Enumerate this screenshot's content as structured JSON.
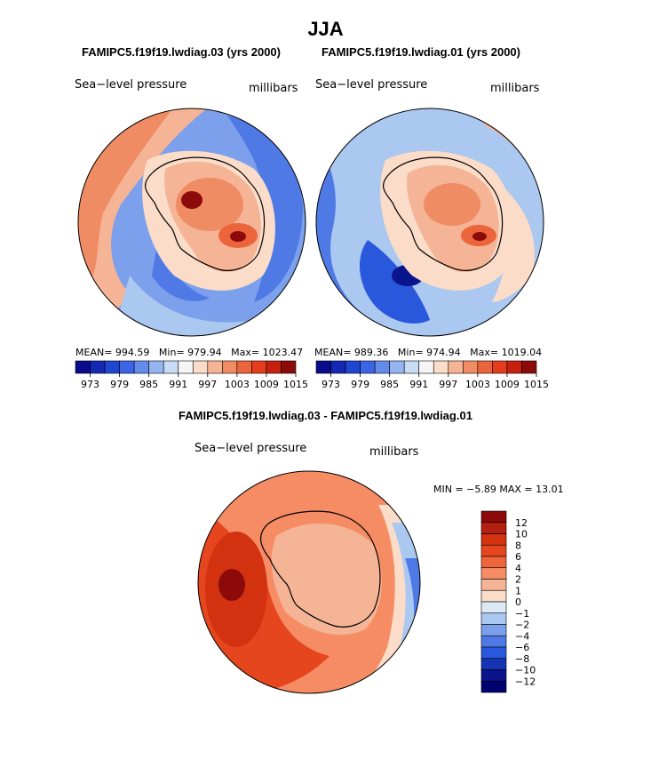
{
  "title": "JJA",
  "panel1": {
    "case": "FAMIPC5.f19f19.lwdiag.03 (yrs 2000)",
    "field": "Sea−level pressure",
    "units": "millibars",
    "mean_label": "MEAN=",
    "mean": "994.59",
    "min_label": "Min=",
    "min": "979.94",
    "max_label": "Max=",
    "max": "1023.47"
  },
  "panel2": {
    "case": "FAMIPC5.f19f19.lwdiag.01 (yrs 2000)",
    "field": "Sea−level pressure",
    "units": "millibars",
    "mean_label": "MEAN=",
    "mean": "989.36",
    "min_label": "Min=",
    "min": "974.94",
    "max_label": "Max=",
    "max": "1019.04"
  },
  "panel3": {
    "case": "FAMIPC5.f19f19.lwdiag.03 - FAMIPC5.f19f19.lwdiag.01",
    "field": "Sea−level pressure",
    "units": "millibars",
    "minmax": "MIN =   −5.89  MAX =   13.01"
  },
  "colorbar_top": {
    "ticks": [
      "973",
      "979",
      "985",
      "991",
      "997",
      "1003",
      "1009",
      "1015"
    ],
    "colors": [
      "#0a0a8c",
      "#1428b4",
      "#1e46d2",
      "#3c64e6",
      "#648ceb",
      "#96b4f0",
      "#c8dcf5",
      "#f5f5f5",
      "#fadcc8",
      "#f5b496",
      "#f08c64",
      "#eb643c",
      "#e63c1e",
      "#c8200f",
      "#8c0a0a"
    ]
  },
  "colorbar_diff": {
    "ticks": [
      "12",
      "10",
      "8",
      "6",
      "4",
      "2",
      "1",
      "0",
      "−1",
      "−2",
      "−4",
      "−6",
      "−8",
      "−10",
      "−12"
    ],
    "colors": [
      "#8c0a0a",
      "#b4200f",
      "#d2320f",
      "#e6461e",
      "#f0643c",
      "#f58c64",
      "#f5b496",
      "#fadcc8",
      "#dceaf8",
      "#aac8f0",
      "#7ca0ec",
      "#4f7ae6",
      "#2a58dc",
      "#1434b4",
      "#0a148c",
      "#00006e"
    ]
  },
  "chart_data": [
    {
      "type": "heatmap",
      "title": "FAMIPC5.f19f19.lwdiag.03 (yrs 2000)",
      "variable": "Sea-level pressure",
      "units": "millibars",
      "projection": "south polar stereographic",
      "mean": 994.59,
      "min": 979.94,
      "max": 1023.47,
      "contour_levels": [
        973,
        976,
        979,
        982,
        985,
        988,
        991,
        994,
        997,
        1000,
        1003,
        1006,
        1009,
        1012,
        1015
      ]
    },
    {
      "type": "heatmap",
      "title": "FAMIPC5.f19f19.lwdiag.01 (yrs 2000)",
      "variable": "Sea-level pressure",
      "units": "millibars",
      "projection": "south polar stereographic",
      "mean": 989.36,
      "min": 974.94,
      "max": 1019.04,
      "contour_levels": [
        973,
        976,
        979,
        982,
        985,
        988,
        991,
        994,
        997,
        1000,
        1003,
        1006,
        1009,
        1012,
        1015
      ]
    },
    {
      "type": "heatmap",
      "title": "FAMIPC5.f19f19.lwdiag.03 - FAMIPC5.f19f19.lwdiag.01",
      "variable": "Sea-level pressure",
      "units": "millibars",
      "projection": "south polar stereographic",
      "min": -5.89,
      "max": 13.01,
      "contour_levels": [
        -12,
        -10,
        -8,
        -6,
        -4,
        -2,
        -1,
        0,
        1,
        2,
        4,
        6,
        8,
        10,
        12
      ]
    }
  ]
}
